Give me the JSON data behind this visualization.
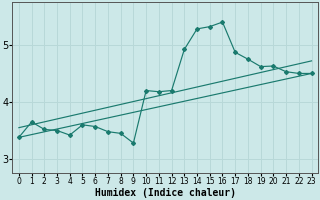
{
  "xlabel": "Humidex (Indice chaleur)",
  "xlim": [
    -0.5,
    23.5
  ],
  "ylim": [
    2.75,
    5.75
  ],
  "xticks": [
    0,
    1,
    2,
    3,
    4,
    5,
    6,
    7,
    8,
    9,
    10,
    11,
    12,
    13,
    14,
    15,
    16,
    17,
    18,
    19,
    20,
    21,
    22,
    23
  ],
  "yticks": [
    3,
    4,
    5
  ],
  "bg_color": "#cce8e8",
  "grid_color": "#b8d8d8",
  "line_color": "#1a7a6e",
  "line1_x": [
    0,
    1,
    2,
    3,
    4,
    5,
    6,
    7,
    8,
    9,
    10,
    11,
    12,
    13,
    14,
    15,
    16,
    17,
    18,
    19,
    20,
    21,
    22,
    23
  ],
  "line1_y": [
    3.38,
    3.65,
    3.52,
    3.5,
    3.42,
    3.6,
    3.57,
    3.48,
    3.45,
    3.28,
    4.2,
    4.18,
    4.2,
    4.92,
    5.28,
    5.32,
    5.4,
    4.87,
    4.75,
    4.62,
    4.63,
    4.53,
    4.5,
    4.5
  ],
  "line2_x": [
    0,
    23
  ],
  "line2_y": [
    3.38,
    4.5
  ],
  "line3_x": [
    0,
    23
  ],
  "line3_y": [
    3.55,
    4.72
  ]
}
